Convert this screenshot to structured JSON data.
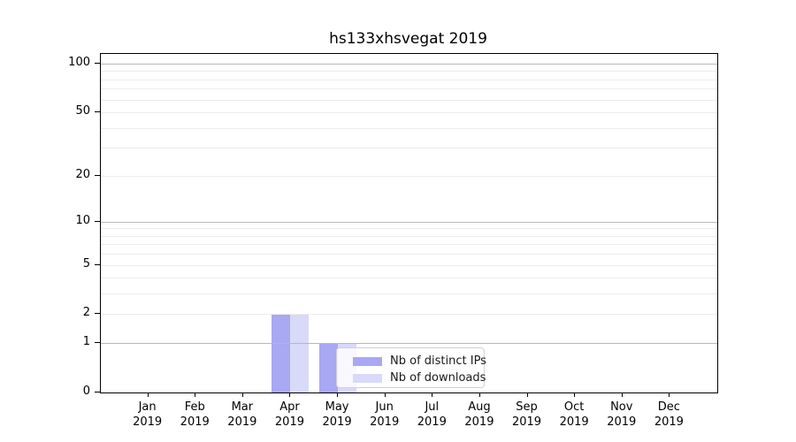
{
  "title": "hs133xhsvegat 2019",
  "chart_data": {
    "type": "bar",
    "title": "hs133xhsvegat 2019",
    "xlabel": "",
    "ylabel": "",
    "categories": [
      "Jan",
      "Feb",
      "Mar",
      "Apr",
      "May",
      "Jun",
      "Jul",
      "Aug",
      "Sep",
      "Oct",
      "Nov",
      "Dec"
    ],
    "year": "2019",
    "series": [
      {
        "name": "Nb of distinct IPs",
        "color": "#a8a8f3",
        "values": [
          0,
          0,
          0,
          2,
          1,
          0,
          0,
          0,
          0,
          0,
          0,
          0
        ]
      },
      {
        "name": "Nb of downloads",
        "color": "#d9d9f9",
        "values": [
          0,
          0,
          0,
          2,
          1,
          0,
          0,
          0,
          0,
          0,
          0,
          0
        ]
      }
    ],
    "y_scale": "log1p",
    "y_ticks": [
      0,
      1,
      2,
      5,
      10,
      20,
      50,
      100
    ],
    "y_max": 114.6,
    "major_gridline_values": [
      1,
      10,
      100
    ],
    "minor_gridline_values": [
      2,
      3,
      4,
      5,
      6,
      7,
      8,
      9,
      20,
      30,
      40,
      50,
      60,
      70,
      80,
      90
    ],
    "grid": true,
    "legend_position": "lower right inside plot"
  },
  "colors": {
    "bar_distinct_ips": "#a8a8f3",
    "bar_downloads": "#d9d9f9",
    "grid_major": "#b8b8b8",
    "grid_minor": "#ececec",
    "axis": "#000000",
    "legend_border": "#d0d0d0",
    "background": "#ffffff"
  }
}
